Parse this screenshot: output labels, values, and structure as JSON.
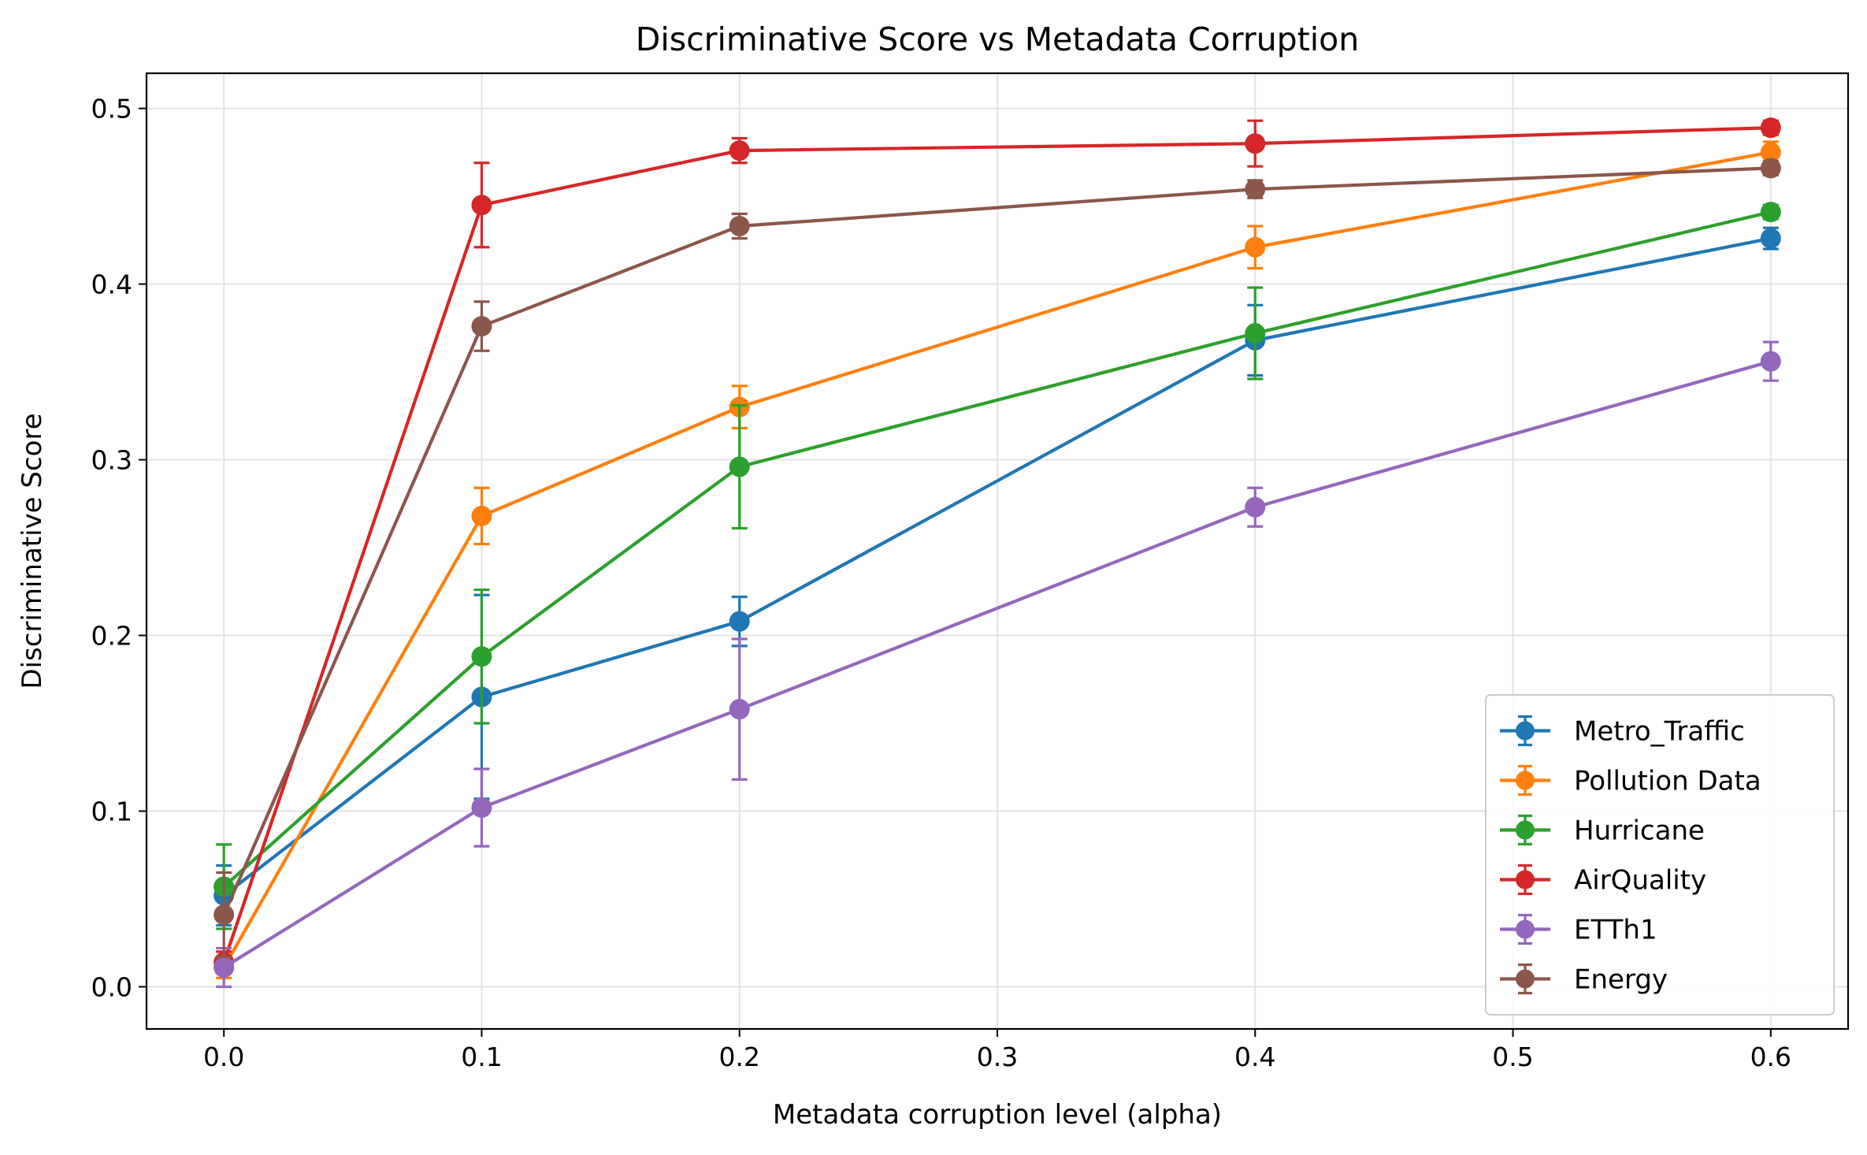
{
  "chart_data": {
    "type": "line",
    "title": "Discriminative Score vs Metadata Corruption",
    "xlabel": "Metadata corruption level (alpha)",
    "ylabel": "Discriminative Score",
    "x": [
      0.0,
      0.1,
      0.2,
      0.4,
      0.6
    ],
    "xlim": [
      -0.03,
      0.63
    ],
    "ylim": [
      -0.024,
      0.52
    ],
    "xticks": [
      0.0,
      0.1,
      0.2,
      0.3,
      0.4,
      0.5,
      0.6
    ],
    "xtick_labels": [
      "0.0",
      "0.1",
      "0.2",
      "0.3",
      "0.4",
      "0.5",
      "0.6"
    ],
    "yticks": [
      0.0,
      0.1,
      0.2,
      0.3,
      0.4,
      0.5
    ],
    "ytick_labels": [
      "0.0",
      "0.1",
      "0.2",
      "0.3",
      "0.4",
      "0.5"
    ],
    "grid": true,
    "legend_position": "bottom-right",
    "series": [
      {
        "name": "Metro_Traffic",
        "color": "#1f77b4",
        "values": [
          0.052,
          0.165,
          0.208,
          0.368,
          0.426
        ],
        "errors": [
          0.017,
          0.058,
          0.014,
          0.02,
          0.006
        ]
      },
      {
        "name": "Pollution Data",
        "color": "#ff7f0e",
        "values": [
          0.011,
          0.268,
          0.33,
          0.421,
          0.475
        ],
        "errors": [
          0.006,
          0.016,
          0.012,
          0.012,
          0.006
        ]
      },
      {
        "name": "Hurricane",
        "color": "#2ca02c",
        "values": [
          0.057,
          0.188,
          0.296,
          0.372,
          0.441
        ],
        "errors": [
          0.024,
          0.038,
          0.035,
          0.026,
          0.004
        ]
      },
      {
        "name": "AirQuality",
        "color": "#d62728",
        "values": [
          0.014,
          0.445,
          0.476,
          0.48,
          0.489
        ],
        "errors": [
          0.006,
          0.024,
          0.007,
          0.013,
          0.004
        ]
      },
      {
        "name": "ETTh1",
        "color": "#9467bd",
        "values": [
          0.011,
          0.102,
          0.158,
          0.273,
          0.356
        ],
        "errors": [
          0.011,
          0.022,
          0.04,
          0.011,
          0.011
        ]
      },
      {
        "name": "Energy",
        "color": "#8c564b",
        "values": [
          0.041,
          0.376,
          0.433,
          0.454,
          0.466
        ],
        "errors": [
          0.024,
          0.014,
          0.007,
          0.005,
          0.004
        ]
      }
    ]
  }
}
